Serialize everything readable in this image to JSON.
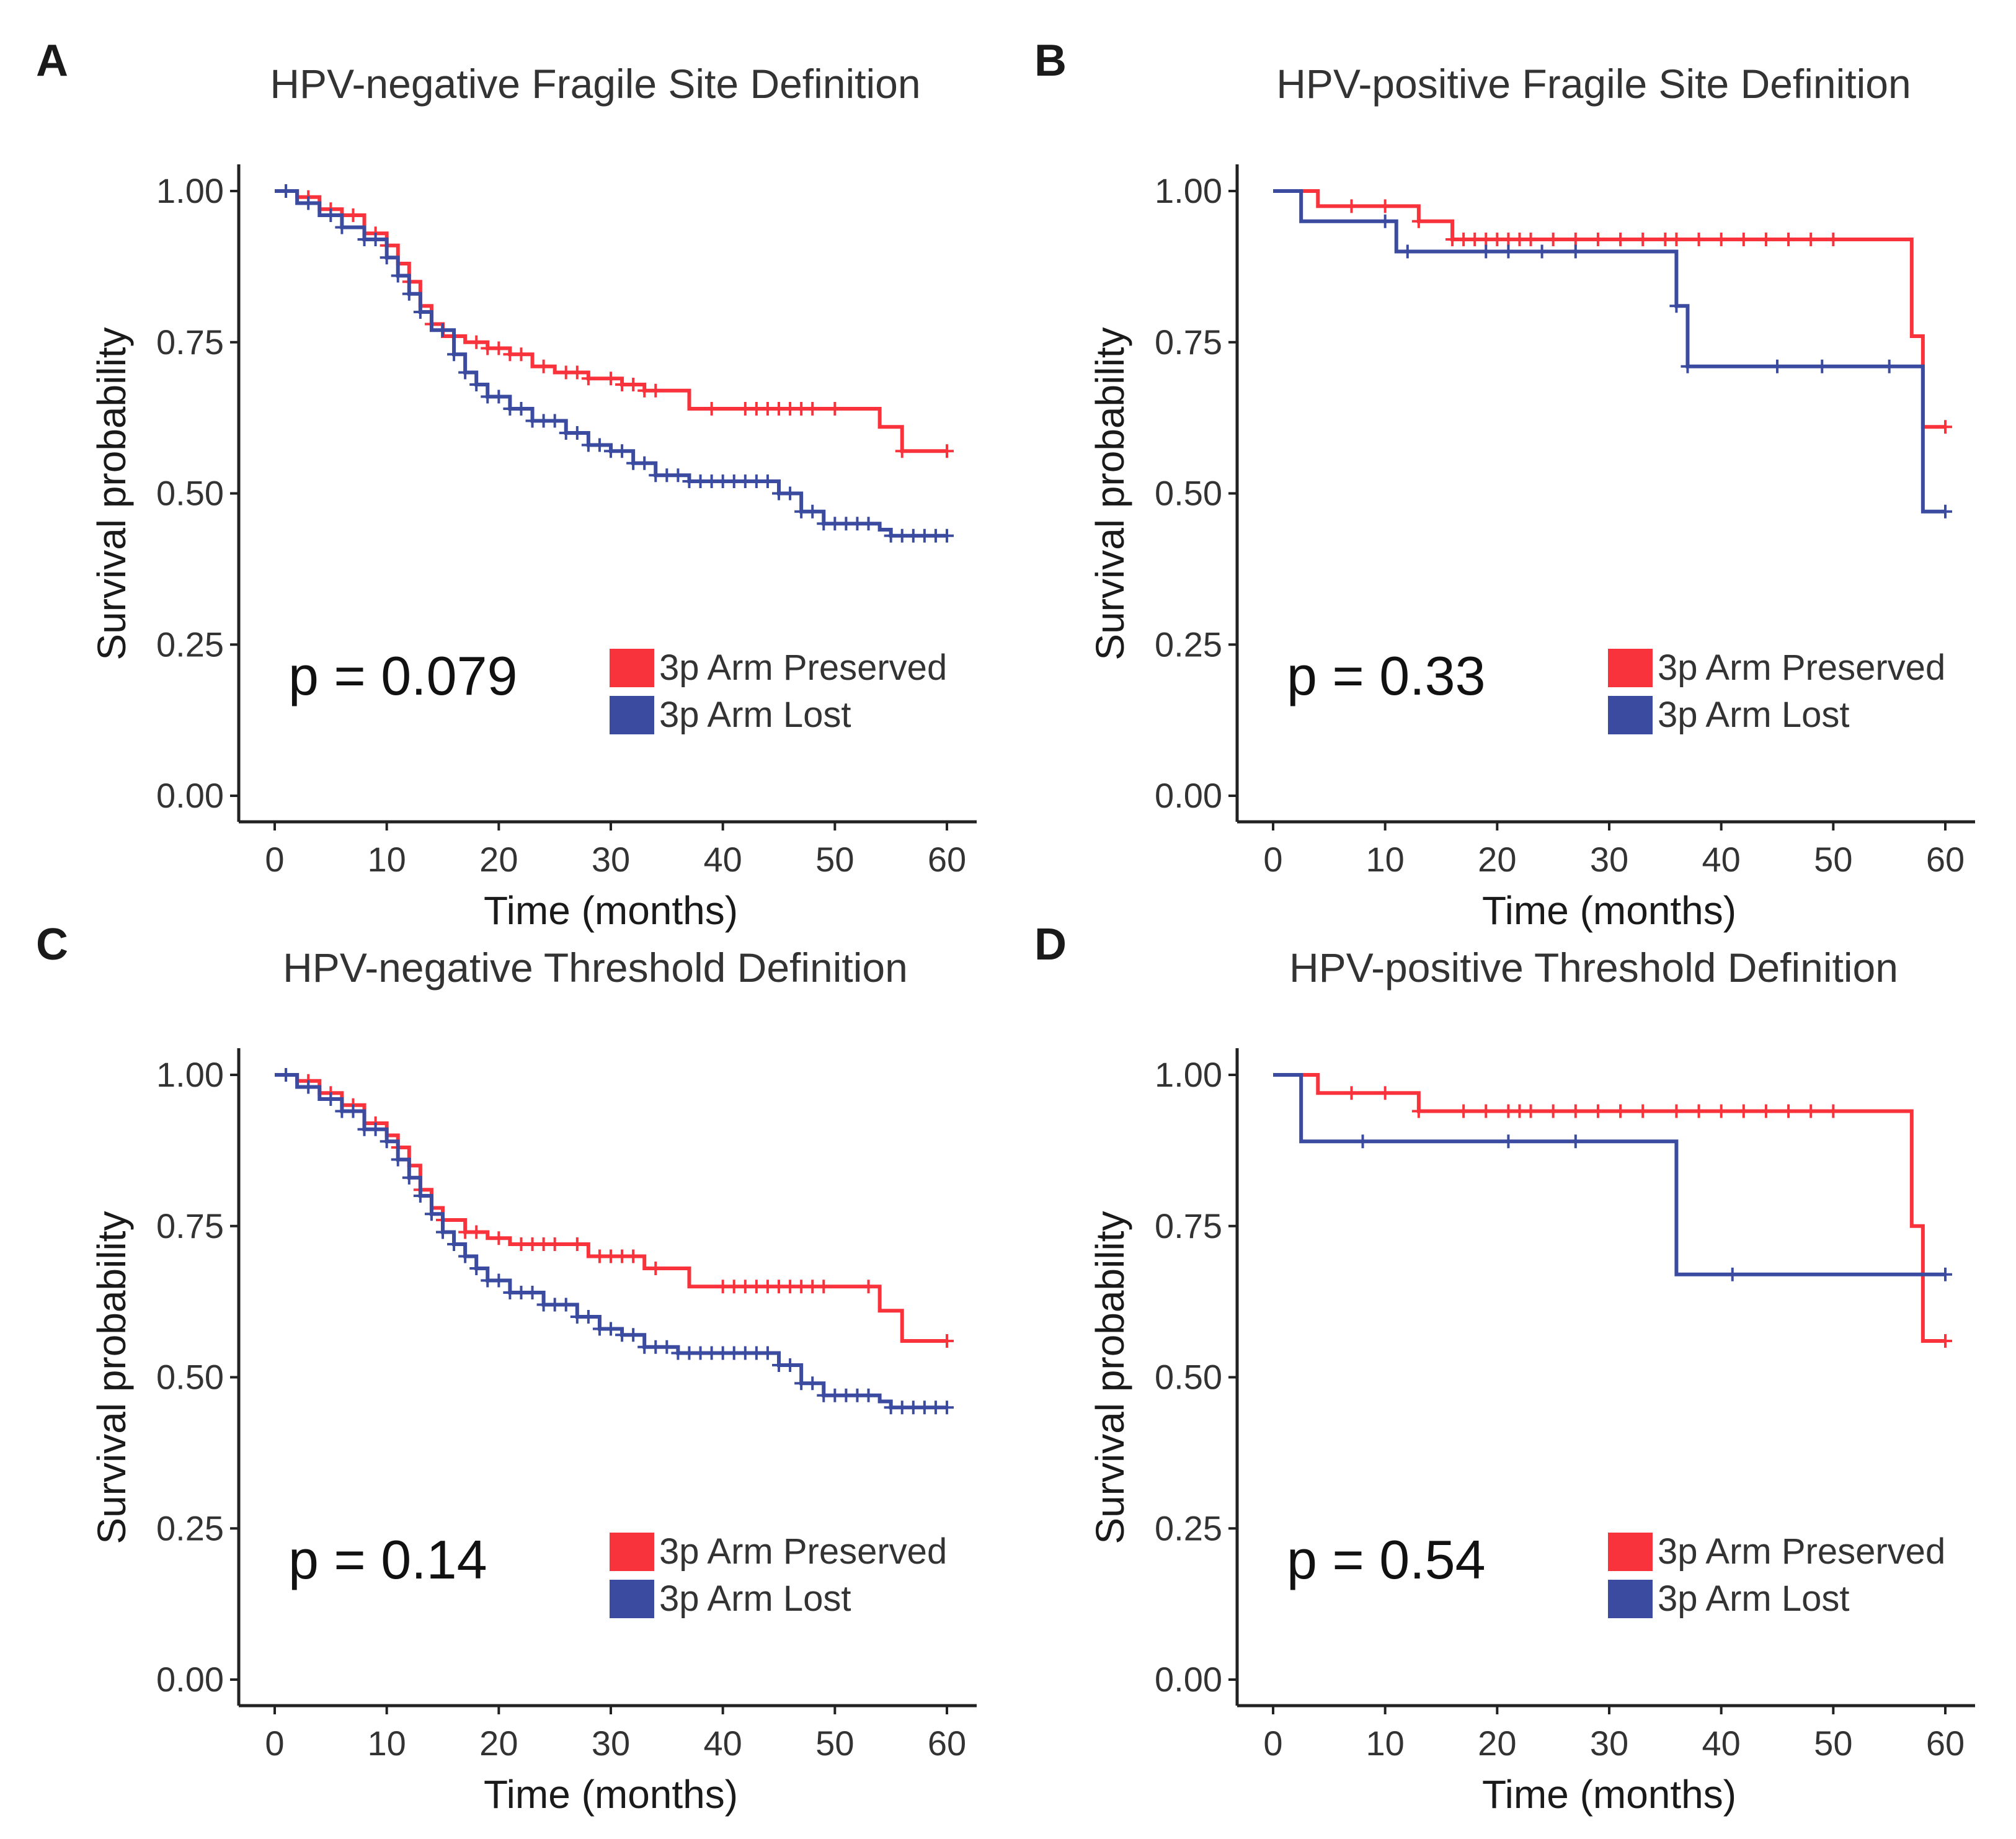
{
  "figure": {
    "colors": {
      "preserved": "#F8333C",
      "lost": "#3A4BA0",
      "axis": "#222222",
      "text": "#333333"
    },
    "legend_labels": {
      "preserved": "3p Arm Preserved",
      "lost": "3p Arm Lost"
    }
  },
  "chart_data": [
    {
      "id": "A",
      "letter": "A",
      "type": "line",
      "subtype": "kaplan-meier",
      "title": "HPV-negative Fragile Site Definition",
      "xlabel": "Time (months)",
      "ylabel": "Survival probability",
      "xlim": [
        0,
        60
      ],
      "ylim": [
        0,
        1
      ],
      "xticks": [
        "0",
        "10",
        "20",
        "30",
        "40",
        "50",
        "60"
      ],
      "yticks": [
        "0.00",
        "0.25",
        "0.50",
        "0.75",
        "1.00"
      ],
      "pvalue": "p = 0.079",
      "series": [
        {
          "name": "3p Arm Preserved",
          "color": "#F8333C",
          "steps": [
            [
              0,
              1.0
            ],
            [
              2,
              0.99
            ],
            [
              4,
              0.97
            ],
            [
              6,
              0.96
            ],
            [
              8,
              0.93
            ],
            [
              10,
              0.91
            ],
            [
              11,
              0.88
            ],
            [
              12,
              0.85
            ],
            [
              13,
              0.81
            ],
            [
              14,
              0.78
            ],
            [
              15,
              0.76
            ],
            [
              17,
              0.75
            ],
            [
              19,
              0.74
            ],
            [
              21,
              0.73
            ],
            [
              23,
              0.71
            ],
            [
              25,
              0.7
            ],
            [
              28,
              0.69
            ],
            [
              31,
              0.68
            ],
            [
              33,
              0.67
            ],
            [
              37,
              0.64
            ],
            [
              54,
              0.61
            ],
            [
              56,
              0.57
            ],
            [
              60,
              0.57
            ]
          ],
          "censors": [
            1,
            3,
            5,
            7,
            9,
            10,
            12,
            14,
            16,
            18,
            19,
            20,
            21,
            22,
            24,
            26,
            27,
            28,
            30,
            31,
            32,
            33,
            34,
            39,
            42,
            43,
            44,
            45,
            46,
            47,
            48,
            50,
            56,
            60
          ]
        },
        {
          "name": "3p Arm Lost",
          "color": "#3A4BA0",
          "steps": [
            [
              0,
              1.0
            ],
            [
              2,
              0.98
            ],
            [
              4,
              0.96
            ],
            [
              6,
              0.94
            ],
            [
              8,
              0.92
            ],
            [
              10,
              0.89
            ],
            [
              11,
              0.86
            ],
            [
              12,
              0.83
            ],
            [
              13,
              0.8
            ],
            [
              14,
              0.77
            ],
            [
              16,
              0.73
            ],
            [
              17,
              0.7
            ],
            [
              18,
              0.68
            ],
            [
              19,
              0.66
            ],
            [
              21,
              0.64
            ],
            [
              23,
              0.62
            ],
            [
              26,
              0.6
            ],
            [
              28,
              0.58
            ],
            [
              30,
              0.57
            ],
            [
              32,
              0.55
            ],
            [
              34,
              0.53
            ],
            [
              37,
              0.52
            ],
            [
              45,
              0.5
            ],
            [
              47,
              0.47
            ],
            [
              49,
              0.45
            ],
            [
              54,
              0.44
            ],
            [
              55,
              0.43
            ],
            [
              60,
              0.43
            ]
          ],
          "censors": [
            1,
            3,
            5,
            6,
            8,
            9,
            10,
            11,
            12,
            13,
            15,
            16,
            17,
            18,
            19,
            20,
            21,
            22,
            23,
            24,
            25,
            26,
            27,
            28,
            29,
            30,
            31,
            32,
            33,
            34,
            35,
            36,
            37,
            38,
            39,
            40,
            41,
            42,
            43,
            44,
            45,
            46,
            47,
            48,
            49,
            50,
            51,
            52,
            53,
            55,
            56,
            57,
            58,
            59,
            60
          ]
        }
      ]
    },
    {
      "id": "B",
      "letter": "B",
      "type": "line",
      "subtype": "kaplan-meier",
      "title": "HPV-positive Fragile Site Definition",
      "xlabel": "Time (months)",
      "ylabel": "Survival probability",
      "xlim": [
        0,
        60
      ],
      "ylim": [
        0,
        1
      ],
      "xticks": [
        "0",
        "10",
        "20",
        "30",
        "40",
        "50",
        "60"
      ],
      "yticks": [
        "0.00",
        "0.25",
        "0.50",
        "0.75",
        "1.00"
      ],
      "pvalue": "p = 0.33",
      "series": [
        {
          "name": "3p Arm Preserved",
          "color": "#F8333C",
          "steps": [
            [
              0,
              1.0
            ],
            [
              4,
              0.975
            ],
            [
              13,
              0.95
            ],
            [
              16,
              0.92
            ],
            [
              57,
              0.76
            ],
            [
              58,
              0.61
            ],
            [
              60,
              0.61
            ]
          ],
          "censors": [
            7,
            10,
            13,
            16,
            17,
            18,
            19,
            20,
            21,
            22,
            23,
            25,
            27,
            29,
            31,
            33,
            35,
            36,
            38,
            40,
            42,
            44,
            46,
            48,
            50,
            60
          ]
        },
        {
          "name": "3p Arm Lost",
          "color": "#3A4BA0",
          "steps": [
            [
              0,
              1.0
            ],
            [
              2.5,
              0.95
            ],
            [
              11,
              0.9
            ],
            [
              36,
              0.81
            ],
            [
              37,
              0.71
            ],
            [
              58,
              0.47
            ],
            [
              60,
              0.47
            ]
          ],
          "censors": [
            10,
            12,
            19,
            21,
            24,
            27,
            36,
            37,
            45,
            49,
            55,
            60
          ]
        }
      ]
    },
    {
      "id": "C",
      "letter": "C",
      "type": "line",
      "subtype": "kaplan-meier",
      "title": "HPV-negative Threshold Definition",
      "xlabel": "Time (months)",
      "ylabel": "Survival probability",
      "xlim": [
        0,
        60
      ],
      "ylim": [
        0,
        1
      ],
      "xticks": [
        "0",
        "10",
        "20",
        "30",
        "40",
        "50",
        "60"
      ],
      "yticks": [
        "0.00",
        "0.25",
        "0.50",
        "0.75",
        "1.00"
      ],
      "pvalue": "p = 0.14",
      "series": [
        {
          "name": "3p Arm Preserved",
          "color": "#F8333C",
          "steps": [
            [
              0,
              1.0
            ],
            [
              2,
              0.99
            ],
            [
              4,
              0.97
            ],
            [
              6,
              0.95
            ],
            [
              8,
              0.92
            ],
            [
              10,
              0.9
            ],
            [
              11,
              0.88
            ],
            [
              12,
              0.85
            ],
            [
              13,
              0.81
            ],
            [
              14,
              0.78
            ],
            [
              15,
              0.76
            ],
            [
              17,
              0.74
            ],
            [
              19,
              0.73
            ],
            [
              21,
              0.72
            ],
            [
              28,
              0.7
            ],
            [
              33,
              0.68
            ],
            [
              37,
              0.65
            ],
            [
              54,
              0.61
            ],
            [
              56,
              0.56
            ],
            [
              60,
              0.56
            ]
          ],
          "censors": [
            1,
            3,
            5,
            7,
            9,
            11,
            13,
            15,
            17,
            18,
            20,
            22,
            23,
            24,
            25,
            27,
            29,
            30,
            31,
            32,
            34,
            40,
            41,
            42,
            43,
            44,
            45,
            46,
            47,
            48,
            49,
            53,
            60
          ]
        },
        {
          "name": "3p Arm Lost",
          "color": "#3A4BA0",
          "steps": [
            [
              0,
              1.0
            ],
            [
              2,
              0.98
            ],
            [
              4,
              0.96
            ],
            [
              6,
              0.94
            ],
            [
              8,
              0.91
            ],
            [
              10,
              0.89
            ],
            [
              11,
              0.86
            ],
            [
              12,
              0.83
            ],
            [
              13,
              0.8
            ],
            [
              14,
              0.77
            ],
            [
              15,
              0.74
            ],
            [
              16,
              0.72
            ],
            [
              17,
              0.7
            ],
            [
              18,
              0.68
            ],
            [
              19,
              0.66
            ],
            [
              21,
              0.64
            ],
            [
              24,
              0.62
            ],
            [
              27,
              0.6
            ],
            [
              29,
              0.58
            ],
            [
              31,
              0.57
            ],
            [
              33,
              0.55
            ],
            [
              36,
              0.54
            ],
            [
              45,
              0.52
            ],
            [
              47,
              0.49
            ],
            [
              49,
              0.47
            ],
            [
              54,
              0.46
            ],
            [
              55,
              0.45
            ],
            [
              60,
              0.45
            ]
          ],
          "censors": [
            1,
            3,
            5,
            6,
            7,
            8,
            9,
            10,
            11,
            12,
            13,
            14,
            15,
            16,
            17,
            18,
            19,
            20,
            21,
            22,
            23,
            24,
            25,
            26,
            27,
            28,
            29,
            30,
            31,
            32,
            33,
            34,
            35,
            36,
            37,
            38,
            39,
            40,
            41,
            42,
            43,
            44,
            45,
            46,
            47,
            48,
            49,
            50,
            51,
            52,
            53,
            55,
            56,
            57,
            58,
            59,
            60
          ]
        }
      ]
    },
    {
      "id": "D",
      "letter": "D",
      "type": "line",
      "subtype": "kaplan-meier",
      "title": "HPV-positive Threshold Definition",
      "xlabel": "Time (months)",
      "ylabel": "Survival probability",
      "xlim": [
        0,
        60
      ],
      "ylim": [
        0,
        1
      ],
      "xticks": [
        "0",
        "10",
        "20",
        "30",
        "40",
        "50",
        "60"
      ],
      "yticks": [
        "0.00",
        "0.25",
        "0.50",
        "0.75",
        "1.00"
      ],
      "pvalue": "p = 0.54",
      "series": [
        {
          "name": "3p Arm Preserved",
          "color": "#F8333C",
          "steps": [
            [
              0,
              1.0
            ],
            [
              4,
              0.97
            ],
            [
              13,
              0.94
            ],
            [
              57,
              0.75
            ],
            [
              58,
              0.56
            ],
            [
              60,
              0.56
            ]
          ],
          "censors": [
            7,
            10,
            13,
            17,
            19,
            21,
            22,
            23,
            25,
            27,
            29,
            31,
            33,
            36,
            38,
            40,
            42,
            44,
            46,
            48,
            50,
            60
          ]
        },
        {
          "name": "3p Arm Lost",
          "color": "#3A4BA0",
          "steps": [
            [
              0,
              1.0
            ],
            [
              2.5,
              0.89
            ],
            [
              36,
              0.67
            ],
            [
              60,
              0.67
            ]
          ],
          "censors": [
            8,
            21,
            27,
            41,
            60
          ]
        }
      ]
    }
  ]
}
